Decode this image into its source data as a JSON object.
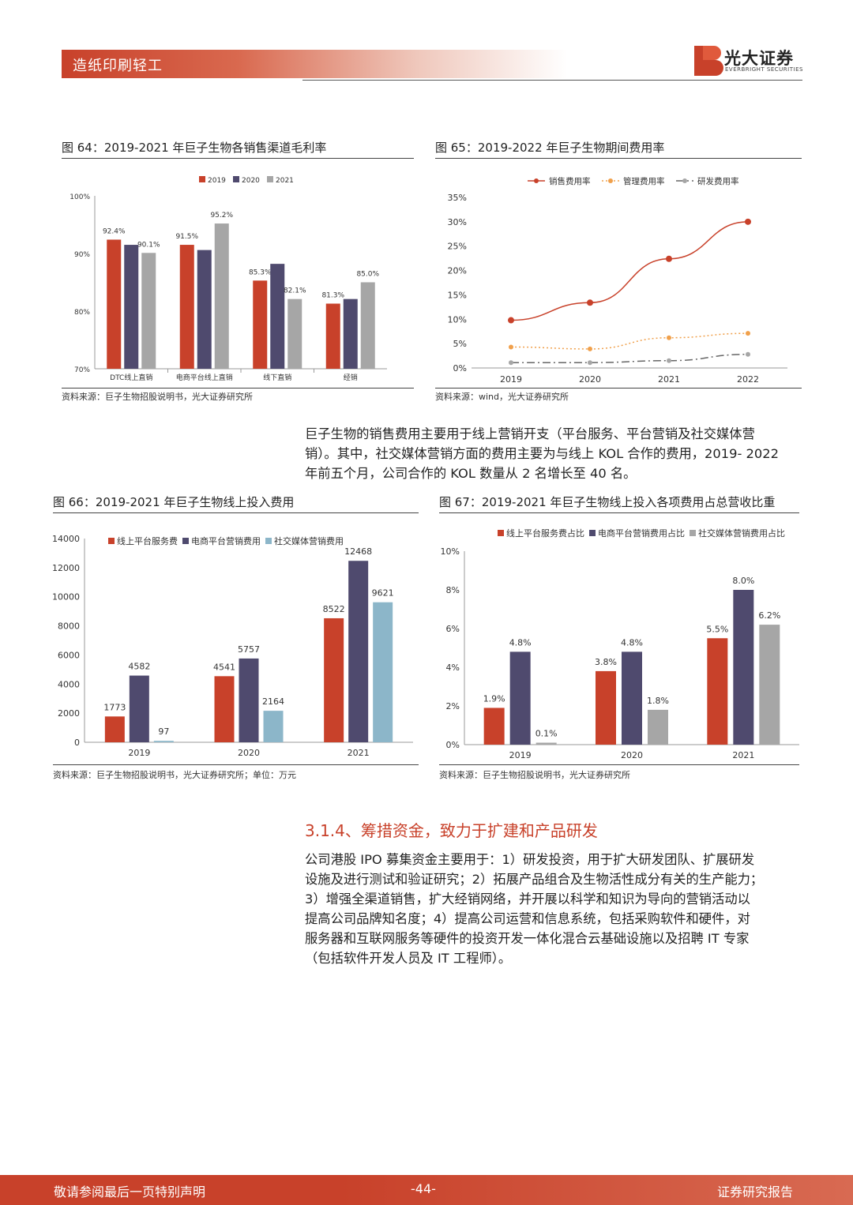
{
  "header": {
    "section": "造纸印刷轻工",
    "logo_name": "光大证券",
    "logo_sub": "EVERBRIGHT SECURITIES"
  },
  "colors": {
    "accent": "#c8412a",
    "navy": "#4f4a6e",
    "gray": "#a6a6a6",
    "lightblue": "#8cb6c9",
    "orange": "#f0a04b"
  },
  "figures": {
    "fig64": {
      "title": "图 64：2019-2021 年巨子生物各销售渠道毛利率",
      "source": "资料来源：巨子生物招股说明书，光大证券研究所"
    },
    "fig65": {
      "title": "图 65：2019-2022 年巨子生物期间费用率",
      "source": "资料来源：wind，光大证券研究所"
    },
    "fig66": {
      "title": "图 66：2019-2021 年巨子生物线上投入费用",
      "source": "资料来源：巨子生物招股说明书，光大证券研究所；单位：万元"
    },
    "fig67": {
      "title": "图 67：2019-2021 年巨子生物线上投入各项费用占总营收比重",
      "source": "资料来源：巨子生物招股说明书，光大证券研究所"
    }
  },
  "paragraph1": [
    "巨子生物的销售费用主要用于线上营销开支（平台服务、平台营销及社交媒体营",
    "销）。其中，社交媒体营销方面的费用主要为与线上 KOL 合作的费用，2019- 2022",
    "年前五个月，公司合作的 KOL 数量从 2 名增长至 40 名。"
  ],
  "section_heading": "3.1.4、筹措资金，致力于扩建和产品研发",
  "paragraph2": [
    "公司港股 IPO 募集资金主要用于：1）研发投资，用于扩大研发团队、扩展研发",
    "设施及进行测试和验证研究；2）拓展产品组合及生物活性成分有关的生产能力；",
    "3）增强全渠道销售，扩大经销网络，并开展以科学和知识为导向的营销活动以",
    "提高公司品牌知名度；4）提高公司运营和信息系统，包括采购软件和硬件，对",
    "服务器和互联网服务等硬件的投资开发一体化混合云基础设施以及招聘 IT 专家",
    "（包括软件开发人员及 IT 工程师）。"
  ],
  "footer": {
    "left": "敬请参阅最后一页特别声明",
    "page": "-44-",
    "right": "证券研究报告"
  },
  "chart_data": [
    {
      "id": "fig64",
      "type": "bar",
      "categories": [
        "DTC线上直销",
        "电商平台线上直销",
        "线下直销",
        "经销"
      ],
      "series": [
        {
          "name": "2019",
          "values": [
            92.4,
            91.5,
            85.3,
            81.3
          ],
          "labels": [
            "92.4%",
            "91.5%",
            "85.3%",
            "81.3%"
          ]
        },
        {
          "name": "2020",
          "values": [
            91.5,
            90.6,
            88.2,
            82.1
          ],
          "labels": [
            "",
            "",
            "",
            ""
          ]
        },
        {
          "name": "2021",
          "values": [
            90.1,
            95.2,
            82.1,
            85.0
          ],
          "labels": [
            "90.1%",
            "95.2%",
            "82.1%",
            "85.0%"
          ]
        }
      ],
      "ylim": [
        70,
        100
      ],
      "yticks": [
        "70%",
        "80%",
        "90%",
        "100%"
      ],
      "ytick_values": [
        70,
        80,
        90,
        100
      ]
    },
    {
      "id": "fig65",
      "type": "line",
      "categories": [
        "2019",
        "2020",
        "2021",
        "2022"
      ],
      "series": [
        {
          "name": "销售费用率",
          "values": [
            9.8,
            13.4,
            22.4,
            30.0
          ]
        },
        {
          "name": "管理费用率",
          "values": [
            4.3,
            3.9,
            6.2,
            7.1
          ]
        },
        {
          "name": "研发费用率",
          "values": [
            1.1,
            1.1,
            1.5,
            2.8
          ]
        }
      ],
      "ylim": [
        0,
        35
      ],
      "yticks": [
        "0%",
        "5%",
        "10%",
        "15%",
        "20%",
        "25%",
        "30%",
        "35%"
      ],
      "ytick_values": [
        0,
        5,
        10,
        15,
        20,
        25,
        30,
        35
      ]
    },
    {
      "id": "fig66",
      "type": "bar",
      "categories": [
        "2019",
        "2020",
        "2021"
      ],
      "series": [
        {
          "name": "线上平台服务费",
          "values": [
            1773,
            4541,
            8522
          ],
          "labels": [
            "1773",
            "4541",
            "8522"
          ]
        },
        {
          "name": "电商平台营销费用",
          "values": [
            4582,
            5757,
            12468
          ],
          "labels": [
            "4582",
            "5757",
            "12468"
          ]
        },
        {
          "name": "社交媒体营销费用",
          "values": [
            97,
            2164,
            9621
          ],
          "labels": [
            "97",
            "2164",
            "9621"
          ]
        }
      ],
      "ylim": [
        0,
        14000
      ],
      "yticks": [
        "0",
        "2000",
        "4000",
        "6000",
        "8000",
        "10000",
        "12000",
        "14000"
      ],
      "ytick_values": [
        0,
        2000,
        4000,
        6000,
        8000,
        10000,
        12000,
        14000
      ]
    },
    {
      "id": "fig67",
      "type": "bar",
      "categories": [
        "2019",
        "2020",
        "2021"
      ],
      "series": [
        {
          "name": "线上平台服务费占比",
          "values": [
            1.9,
            3.8,
            5.5
          ],
          "labels": [
            "1.9%",
            "3.8%",
            "5.5%"
          ]
        },
        {
          "name": "电商平台营销费用占比",
          "values": [
            4.8,
            4.8,
            8.0
          ],
          "labels": [
            "4.8%",
            "4.8%",
            "8.0%"
          ]
        },
        {
          "name": "社交媒体营销费用占比",
          "values": [
            0.1,
            1.8,
            6.2
          ],
          "labels": [
            "0.1%",
            "1.8%",
            "6.2%"
          ]
        }
      ],
      "ylim": [
        0,
        10
      ],
      "yticks": [
        "0%",
        "2%",
        "4%",
        "6%",
        "8%",
        "10%"
      ],
      "ytick_values": [
        0,
        2,
        4,
        6,
        8,
        10
      ]
    }
  ]
}
